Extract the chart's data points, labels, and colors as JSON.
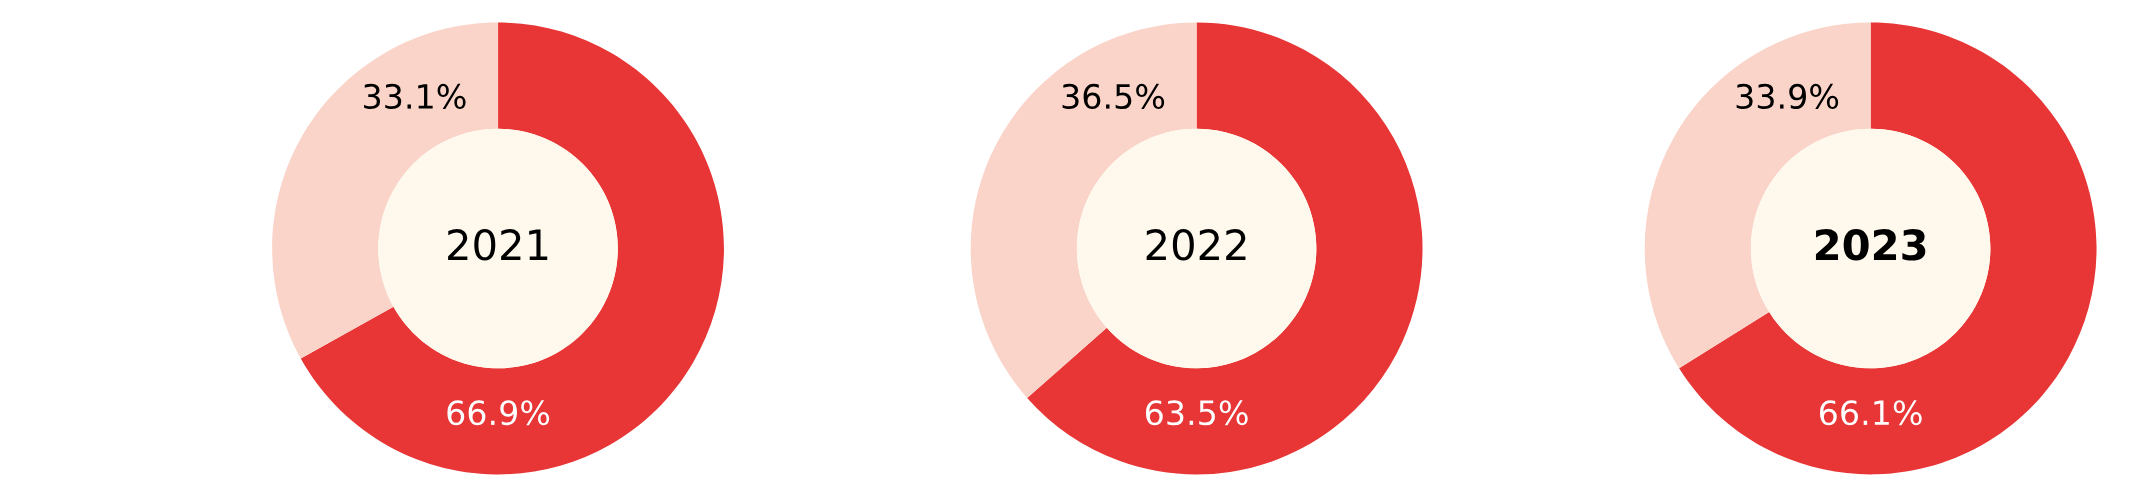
{
  "chart_data": [
    {
      "type": "donut",
      "title": "2021",
      "categories": [
        null,
        null
      ],
      "values": [
        66.9,
        33.1
      ],
      "colors": [
        "#e83535",
        "#fad4c8"
      ],
      "value_labels": [
        "66.9%",
        "33.1%"
      ]
    },
    {
      "type": "donut",
      "title": "2022",
      "categories": [
        null,
        null
      ],
      "values": [
        63.5,
        36.5
      ],
      "colors": [
        "#e83535",
        "#fad4c8"
      ],
      "value_labels": [
        "63.5%",
        "36.5%"
      ]
    },
    {
      "type": "donut",
      "title": "2023",
      "categories": [
        null,
        null
      ],
      "values": [
        66.1,
        33.9
      ],
      "colors": [
        "#e83535",
        "#fad4c8"
      ],
      "value_labels": [
        "66.1%",
        "33.9%"
      ]
    }
  ]
}
